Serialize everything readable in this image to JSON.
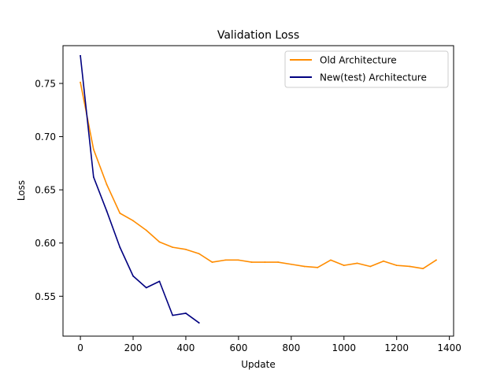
{
  "chart_data": {
    "type": "line",
    "title": "Validation Loss",
    "xlabel": "Update",
    "ylabel": "Loss",
    "xlim": [
      -66,
      1416
    ],
    "ylim": [
      0.5125,
      0.7855
    ],
    "xticks": [
      0,
      200,
      400,
      600,
      800,
      1000,
      1200,
      1400
    ],
    "yticks": [
      0.55,
      0.6,
      0.65,
      0.7,
      0.75
    ],
    "xtick_labels": [
      "0",
      "200",
      "400",
      "600",
      "800",
      "1000",
      "1200",
      "1400"
    ],
    "ytick_labels": [
      "0.55",
      "0.60",
      "0.65",
      "0.70",
      "0.75"
    ],
    "grid": false,
    "legend_position": "top-right",
    "series": [
      {
        "name": "Old Architecture",
        "color": "#ff8c00",
        "x": [
          0,
          50,
          100,
          150,
          200,
          250,
          300,
          350,
          400,
          450,
          500,
          550,
          600,
          650,
          700,
          750,
          800,
          850,
          900,
          950,
          1000,
          1050,
          1100,
          1150,
          1200,
          1250,
          1300,
          1350
        ],
        "y": [
          0.751,
          0.688,
          0.655,
          0.628,
          0.621,
          0.612,
          0.601,
          0.596,
          0.594,
          0.59,
          0.582,
          0.584,
          0.584,
          0.582,
          0.582,
          0.582,
          0.58,
          0.578,
          0.577,
          0.584,
          0.579,
          0.581,
          0.578,
          0.583,
          0.579,
          0.578,
          0.576,
          0.584
        ]
      },
      {
        "name": "New(test) Architecture",
        "color": "#000080",
        "x": [
          0,
          50,
          100,
          150,
          200,
          250,
          300,
          350,
          400,
          450
        ],
        "y": [
          0.776,
          0.662,
          0.63,
          0.596,
          0.569,
          0.558,
          0.564,
          0.532,
          0.534,
          0.525
        ]
      }
    ]
  }
}
